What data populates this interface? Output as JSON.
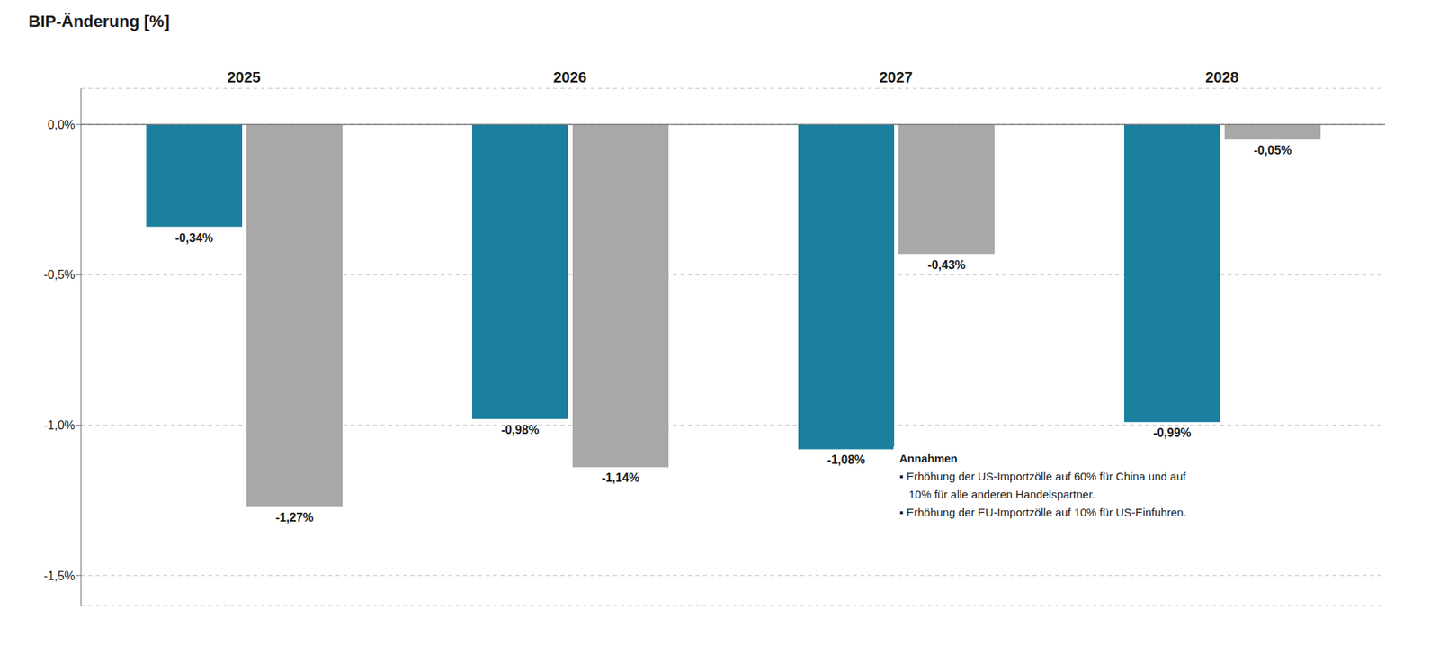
{
  "chart_data": {
    "type": "bar",
    "y_label": "BIP-Änderung [%]",
    "categories": [
      "2025",
      "2026",
      "2027",
      "2028"
    ],
    "series": [
      {
        "color": "#1b7fa0",
        "values": [
          -0.34,
          -0.98,
          -1.08,
          -0.99
        ],
        "value_labels": [
          "-0,34%",
          "-0,98%",
          "-1,08%",
          "-0,99%"
        ]
      },
      {
        "color": "#a8a8a8",
        "values": [
          -1.27,
          -1.14,
          -0.43,
          -0.05
        ],
        "value_labels": [
          "-1,27%",
          "-1,14%",
          "-0,43%",
          "-0,05%"
        ]
      }
    ],
    "ylim": [
      -1.6,
      0.12
    ],
    "yticks": [
      {
        "value": 0.0,
        "label": "0,0%"
      },
      {
        "value": -0.5,
        "label": "-0,5%"
      },
      {
        "value": -1.0,
        "label": "-1,0%"
      },
      {
        "value": -1.5,
        "label": "-1,5%"
      }
    ],
    "grid": true,
    "data_labels": true,
    "annotations": [
      "Annahmen",
      "▪ Erhöhung der US-Importzölle auf 60% für China und auf",
      "   10% für alle anderen Handelspartner.",
      "▪ Erhöhung der EU-Importzölle auf 10% für US-Einfuhren."
    ]
  }
}
